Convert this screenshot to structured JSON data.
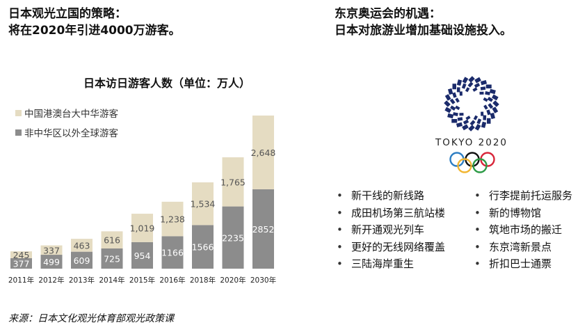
{
  "left": {
    "headline1": "日本观光立国的策略：",
    "headline2": "将在2020年引进4000万游客。"
  },
  "right": {
    "headline1": "东京奥运会的机遇：",
    "headline2": "日本对旅游业增加基础设施投入。"
  },
  "chart_data": {
    "type": "bar",
    "stacked": true,
    "title": "日本访日游客人数（单位：万人）",
    "categories": [
      "2011年",
      "2012年",
      "2013年",
      "2014年",
      "2015年",
      "2016年",
      "2018年",
      "2020年",
      "2030年"
    ],
    "series": [
      {
        "name": "非中华区以外全球游客",
        "color": "#8c8c8c",
        "values": [
          377,
          499,
          609,
          725,
          954,
          1166,
          1566,
          2235,
          2852
        ]
      },
      {
        "name": "中国港澳台大中华游客",
        "color": "#e5dcc2",
        "values": [
          245,
          337,
          463,
          616,
          1019,
          1238,
          1534,
          1765,
          2648
        ]
      }
    ],
    "legend_position": "top-left",
    "grid": false
  },
  "olympic": {
    "logo_text": "TOKYO 2020",
    "colors": {
      "checker": "#1b2b6b",
      "blue": "#2d7ec3",
      "yellow": "#f2b632",
      "black": "#111111",
      "green": "#2e9b47",
      "red": "#d8263a"
    }
  },
  "bullets_left": [
    "新干线的新线路",
    "成田机场第三航站楼",
    "新开通观光列车",
    "更好的无线网络覆盖",
    "三陆海岸重生"
  ],
  "bullets_right": [
    "行李提前托运服务",
    "新的博物馆",
    "筑地市场的搬迁",
    "东京湾新景点",
    "折扣巴士通票"
  ],
  "bullet_symbol": "•",
  "source": "来源：日本文化观光体育部观光政策课"
}
